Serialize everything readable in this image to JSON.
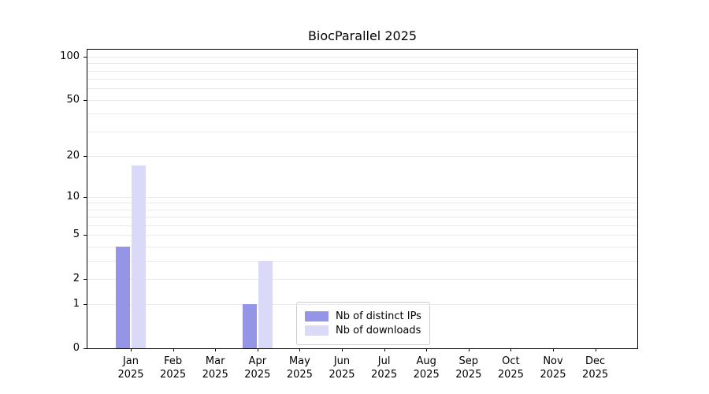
{
  "title": "BiocParallel 2025",
  "chart_data": {
    "type": "bar",
    "title": "BiocParallel 2025",
    "months": [
      "Jan",
      "Feb",
      "Mar",
      "Apr",
      "May",
      "Jun",
      "Jul",
      "Aug",
      "Sep",
      "Oct",
      "Nov",
      "Dec"
    ],
    "year_label": "2025",
    "series": [
      {
        "name": "Nb of distinct IPs",
        "color": "#9595e8",
        "values": [
          4,
          0,
          0,
          1,
          0,
          0,
          0,
          0,
          0,
          0,
          0,
          0
        ]
      },
      {
        "name": "Nb of downloads",
        "color": "#dadaf8",
        "values": [
          17,
          0,
          0,
          3,
          0,
          0,
          0,
          0,
          0,
          0,
          0,
          0
        ]
      }
    ],
    "yticks": [
      0,
      1,
      2,
      5,
      10,
      20,
      50,
      100
    ],
    "gridlines": [
      1,
      2,
      3,
      4,
      5,
      6,
      7,
      8,
      9,
      10,
      20,
      30,
      40,
      50,
      60,
      70,
      80,
      90,
      100
    ],
    "scale": "log1p",
    "ylim": [
      0,
      100
    ],
    "xlabel": "",
    "ylabel": "",
    "grid": "horizontal",
    "legend_position": "bottom-center"
  }
}
